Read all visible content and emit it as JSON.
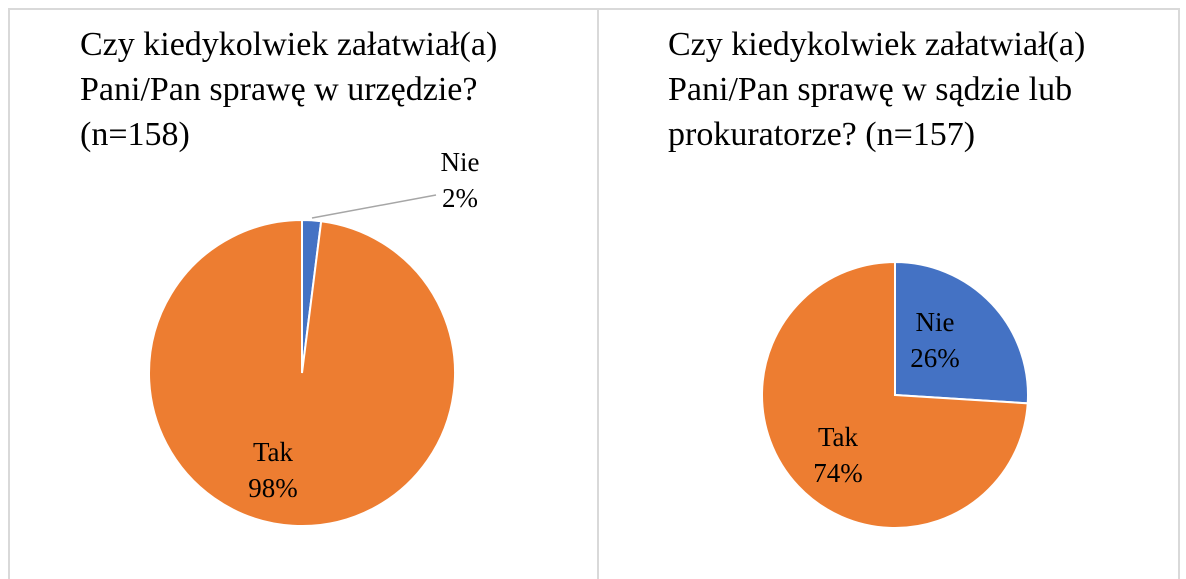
{
  "chart_data": [
    {
      "type": "pie",
      "title": "Czy kiedykolwiek załatwiał(a) Pani/Pan sprawę w urzędzie? (n=158)",
      "categories": [
        "Nie",
        "Tak"
      ],
      "values": [
        2,
        98
      ],
      "value_labels": [
        "2%",
        "98%"
      ],
      "colors": [
        "#4472c4",
        "#ed7d31"
      ]
    },
    {
      "type": "pie",
      "title": "Czy kiedykolwiek załatwiał(a) Pani/Pan sprawę w sądzie lub prokuratorze? (n=157)",
      "categories": [
        "Nie",
        "Tak"
      ],
      "values": [
        26,
        74
      ],
      "value_labels": [
        "26%",
        "74%"
      ],
      "colors": [
        "#4472c4",
        "#ed7d31"
      ]
    }
  ]
}
